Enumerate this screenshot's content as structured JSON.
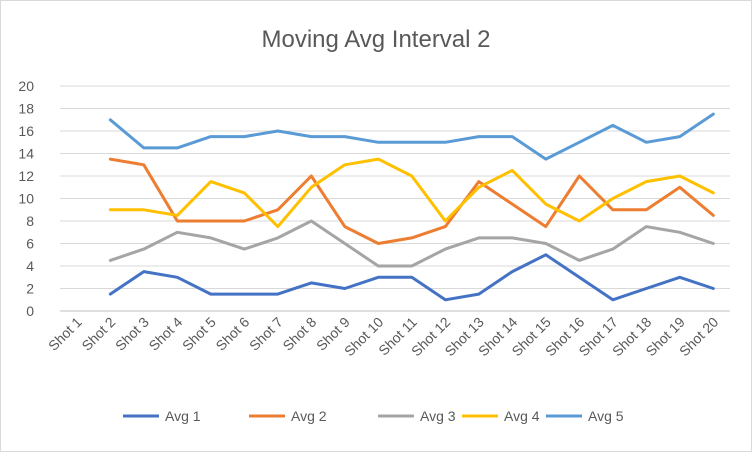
{
  "chart_data": {
    "type": "line",
    "title": "Moving Avg Interval 2",
    "xlabel": "",
    "ylabel": "",
    "ylim": [
      0,
      20
    ],
    "yticks": [
      0,
      2,
      4,
      6,
      8,
      10,
      12,
      14,
      16,
      18,
      20
    ],
    "grid": true,
    "legend": "bottom",
    "categories": [
      "Shot 1",
      "Shot 2",
      "Shot 3",
      "Shot 4",
      "Shot 5",
      "Shot 6",
      "Shot 7",
      "Shot 8",
      "Shot 9",
      "Shot 10",
      "Shot 11",
      "Shot 12",
      "Shot 13",
      "Shot 14",
      "Shot 15",
      "Shot 16",
      "Shot 17",
      "Shot 18",
      "Shot 19",
      "Shot 20"
    ],
    "series": [
      {
        "name": "Avg 1",
        "color": "#4472c4",
        "values": [
          null,
          1.5,
          3.5,
          3,
          1.5,
          1.5,
          1.5,
          2.5,
          2,
          3,
          3,
          1,
          1.5,
          3.5,
          5,
          3,
          1,
          2,
          3,
          2
        ]
      },
      {
        "name": "Avg 2",
        "color": "#ed7d31",
        "values": [
          null,
          13.5,
          13,
          8,
          8,
          8,
          9,
          12,
          7.5,
          6,
          6.5,
          7.5,
          11.5,
          9.5,
          7.5,
          12,
          9,
          9,
          11,
          8.5
        ]
      },
      {
        "name": "Avg 3",
        "color": "#a5a5a5",
        "values": [
          null,
          4.5,
          5.5,
          7,
          6.5,
          5.5,
          6.5,
          8,
          6,
          4,
          4,
          5.5,
          6.5,
          6.5,
          6,
          4.5,
          5.5,
          7.5,
          7,
          6
        ]
      },
      {
        "name": "Avg 4",
        "color": "#ffc000",
        "values": [
          null,
          9,
          9,
          8.5,
          11.5,
          10.5,
          7.5,
          11,
          13,
          13.5,
          12,
          8,
          11,
          12.5,
          9.5,
          8,
          10,
          11.5,
          12,
          10.5
        ]
      },
      {
        "name": "Avg 5",
        "color": "#5b9bd5",
        "values": [
          null,
          17,
          14.5,
          14.5,
          15.5,
          15.5,
          16,
          15.5,
          15.5,
          15,
          15,
          15,
          15.5,
          15.5,
          13.5,
          15,
          16.5,
          15,
          15.5,
          17.5
        ]
      }
    ]
  }
}
